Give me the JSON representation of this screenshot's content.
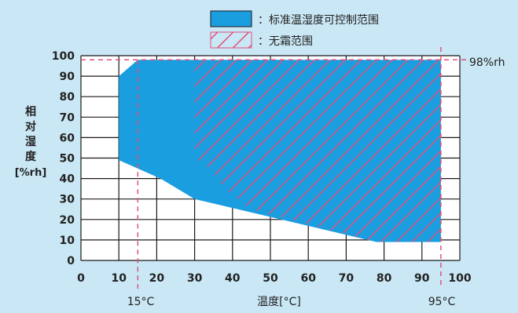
{
  "legend": {
    "standard_label": "：标准温湿度可控制范围",
    "frost_free_label": "：无霜范围"
  },
  "axes": {
    "ylabel_chars": [
      "相",
      "对",
      "湿",
      "度"
    ],
    "ylabel_unit": "[%rh]",
    "xlabel": "温度[°C]",
    "annotation_98": "98%rh",
    "annotation_15": "15°C",
    "annotation_95": "95°C"
  },
  "colors": {
    "background": "#c9e7f4",
    "region_fill": "#1a9ee0",
    "hatch": "#e0527e",
    "guide": "#e0527e",
    "grid": "#1a1a1a"
  },
  "chart_data": {
    "type": "area",
    "xlabel": "温度[°C]",
    "ylabel": "相对湿度[%rh]",
    "xlim": [
      0,
      100
    ],
    "ylim": [
      0,
      100
    ],
    "xticks": [
      0,
      10,
      20,
      30,
      40,
      50,
      60,
      70,
      80,
      90,
      100
    ],
    "yticks": [
      0,
      10,
      20,
      30,
      40,
      50,
      60,
      70,
      80,
      90,
      100
    ],
    "grid": true,
    "legend_position": "top",
    "series": [
      {
        "name": "标准温湿度可控制范围",
        "polygon": [
          [
            10,
            90
          ],
          [
            15,
            98
          ],
          [
            95,
            98
          ],
          [
            95,
            9
          ],
          [
            78,
            9
          ],
          [
            30,
            30
          ],
          [
            21,
            40
          ],
          [
            10,
            49
          ]
        ]
      },
      {
        "name": "无霜范围",
        "polygon": [
          [
            30,
            98
          ],
          [
            95,
            98
          ],
          [
            95,
            9
          ],
          [
            78,
            9
          ],
          [
            45,
            25
          ],
          [
            38,
            35
          ],
          [
            34,
            45
          ],
          [
            30,
            50
          ]
        ]
      }
    ],
    "reference_lines": [
      {
        "axis": "y",
        "value": 98,
        "label": "98%rh"
      },
      {
        "axis": "x",
        "value": 15,
        "label": "15°C"
      },
      {
        "axis": "x",
        "value": 95,
        "label": "95°C"
      }
    ]
  }
}
